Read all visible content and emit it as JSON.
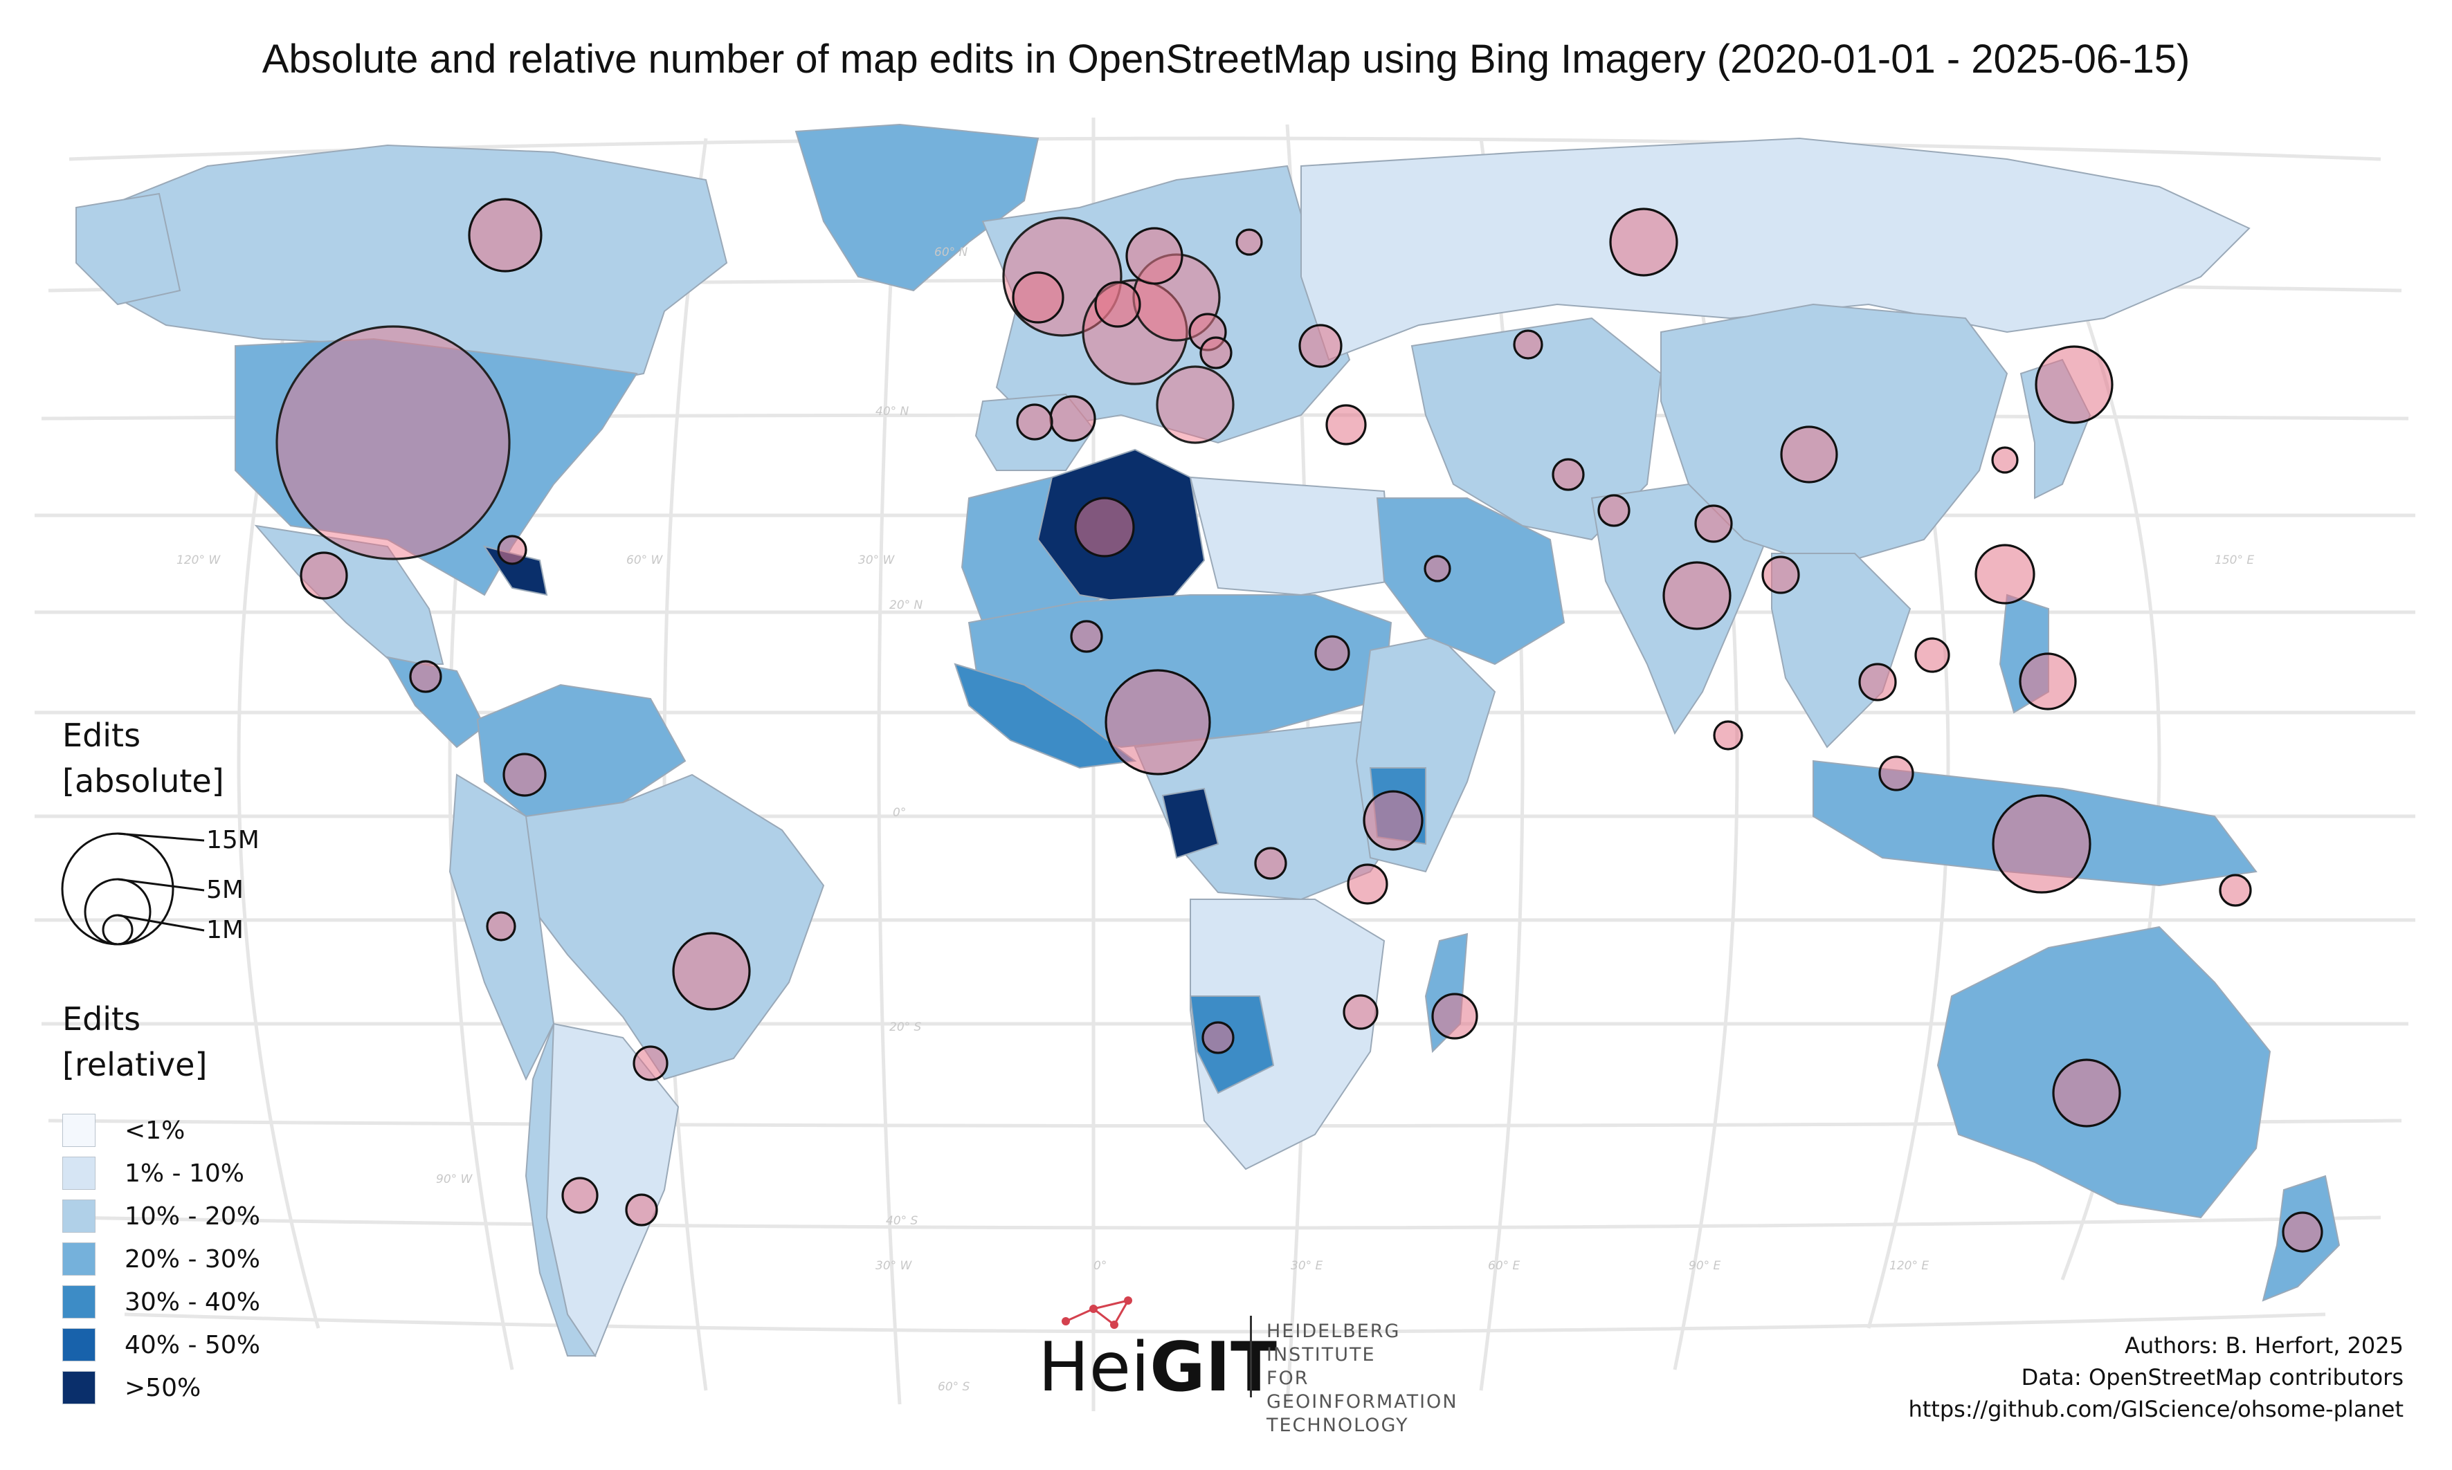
{
  "title": "Absolute and relative number of map edits in OpenStreetMap using Bing Imagery (2020-01-01 - 2025-06-15)",
  "legend_absolute": {
    "title_line1": "Edits",
    "title_line2": "[absolute]",
    "sizes": [
      {
        "label": "15M",
        "value": 15000000
      },
      {
        "label": "5M",
        "value": 5000000
      },
      {
        "label": "1M",
        "value": 1000000
      }
    ]
  },
  "legend_relative": {
    "title_line1": "Edits",
    "title_line2": "[relative]",
    "classes": [
      {
        "label": "<1%",
        "color": "#f4f8fd"
      },
      {
        "label": "1% - 10%",
        "color": "#d6e5f4"
      },
      {
        "label": "10% - 20%",
        "color": "#b0d0e8"
      },
      {
        "label": "20% - 30%",
        "color": "#75b1db"
      },
      {
        "label": "30% - 40%",
        "color": "#3d8cc6"
      },
      {
        "label": "40% - 50%",
        "color": "#1862ab"
      },
      {
        "label": ">50%",
        "color": "#0a2f6b"
      }
    ]
  },
  "credits": {
    "line1": "Authors: B. Herfort, 2025",
    "line2": "Data: OpenStreetMap contributors",
    "line3": "https://github.com/GIScience/ohsome-planet"
  },
  "logo": {
    "word_light": "Hei",
    "word_bold": "GIT",
    "sub1": "HEIDELBERG INSTITUTE",
    "sub2": "FOR GEOINFORMATION",
    "sub3": "TECHNOLOGY"
  },
  "graticule_labels": {
    "lat_60n": "60° N",
    "lat_40n": "40° N",
    "lat_20n": "20° N",
    "lat_0": "0°",
    "lat_20s": "20° S",
    "lat_40s": "40° S",
    "lat_60s": "60° S",
    "lon_120w": "120° W",
    "lon_60w": "60° W",
    "lon_30w": "30° W",
    "lon_150e": "150° E",
    "lon_90w": "90° W",
    "lon_30w_b": "30° W",
    "lon_0": "0°",
    "lon_30e": "30° E",
    "lon_60e": "60° E",
    "lon_90e": "90° E",
    "lon_120e": "120° E"
  },
  "regions": [
    {
      "name": "Canada",
      "share_class": "10% - 20%",
      "color": "#b0d0e8"
    },
    {
      "name": "Greenland",
      "share_class": "20% - 30%",
      "color": "#75b1db"
    },
    {
      "name": "USA",
      "share_class": "20% - 30%",
      "color": "#75b1db"
    },
    {
      "name": "Mexico",
      "share_class": "10% - 20%",
      "color": "#b0d0e8"
    },
    {
      "name": "Cuba",
      "share_class": ">50%",
      "color": "#0a2f6b"
    },
    {
      "name": "Brazil",
      "share_class": "10% - 20%",
      "color": "#b0d0e8"
    },
    {
      "name": "Argentina",
      "share_class": "1% - 10%",
      "color": "#d6e5f4"
    },
    {
      "name": "Algeria",
      "share_class": ">50%",
      "color": "#0a2f6b"
    },
    {
      "name": "Russia",
      "share_class": "1% - 10%",
      "color": "#d6e5f4"
    },
    {
      "name": "China",
      "share_class": "10% - 20%",
      "color": "#b0d0e8"
    },
    {
      "name": "India",
      "share_class": "10% - 20%",
      "color": "#b0d0e8"
    },
    {
      "name": "Australia",
      "share_class": "20% - 30%",
      "color": "#75b1db"
    },
    {
      "name": "Indonesia",
      "share_class": "20% - 30%",
      "color": "#75b1db"
    },
    {
      "name": "Namibia",
      "share_class": "30% - 40%",
      "color": "#3d8cc6"
    },
    {
      "name": "Gabon",
      "share_class": ">50%",
      "color": "#0a2f6b"
    }
  ]
}
